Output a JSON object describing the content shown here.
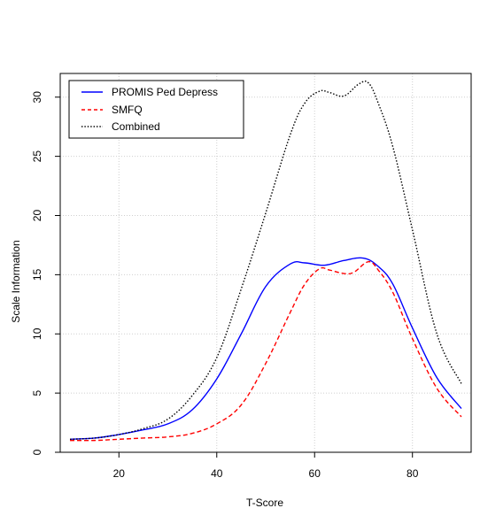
{
  "chart_data": {
    "type": "line",
    "title": "",
    "xlabel": "T-Score",
    "ylabel": "Scale Information",
    "xlim": [
      8,
      92
    ],
    "ylim": [
      0,
      32
    ],
    "xticks": [
      20,
      40,
      60,
      80
    ],
    "yticks": [
      0,
      5,
      10,
      15,
      20,
      25,
      30
    ],
    "xtick_labels": [
      "20",
      "40",
      "60",
      "80"
    ],
    "ytick_labels": [
      "0",
      "5",
      "10",
      "15",
      "20",
      "25",
      "30"
    ],
    "grid": true,
    "legend_position": "top-left",
    "series": [
      {
        "name": "PROMIS Ped Depress",
        "color": "#0000ff",
        "line_style": "solid",
        "x": [
          10,
          15,
          20,
          25,
          30,
          35,
          40,
          45,
          50,
          55,
          58,
          62,
          66,
          70,
          73,
          76,
          80,
          85,
          90
        ],
        "y": [
          1.1,
          1.2,
          1.5,
          1.9,
          2.4,
          3.6,
          6.2,
          10.0,
          14.0,
          15.9,
          16.0,
          15.8,
          16.2,
          16.4,
          15.7,
          14.2,
          10.5,
          6.3,
          3.7
        ]
      },
      {
        "name": "SMFQ",
        "color": "#ff0000",
        "line_style": "dashed",
        "x": [
          10,
          15,
          20,
          25,
          30,
          35,
          40,
          45,
          50,
          55,
          58,
          61,
          63,
          66,
          68,
          71,
          73,
          76,
          80,
          85,
          90
        ],
        "y": [
          1.0,
          1.0,
          1.1,
          1.2,
          1.3,
          1.6,
          2.4,
          4.0,
          7.5,
          11.8,
          14.2,
          15.5,
          15.4,
          15.1,
          15.2,
          16.1,
          15.4,
          13.5,
          9.6,
          5.4,
          3.0
        ]
      },
      {
        "name": "Combined",
        "color": "#000000",
        "line_style": "dotted",
        "x": [
          10,
          15,
          20,
          25,
          30,
          35,
          40,
          45,
          50,
          55,
          58,
          61,
          63,
          66,
          69,
          71,
          73,
          76,
          80,
          85,
          90
        ],
        "y": [
          1.1,
          1.2,
          1.5,
          2.0,
          2.8,
          4.8,
          8.0,
          13.8,
          20.2,
          26.8,
          29.5,
          30.5,
          30.4,
          30.1,
          31.1,
          31.2,
          29.5,
          25.8,
          18.8,
          10.0,
          5.8
        ]
      }
    ]
  }
}
